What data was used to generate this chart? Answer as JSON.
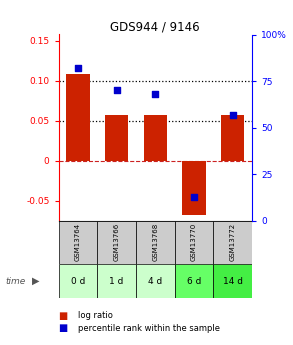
{
  "title": "GDS944 / 9146",
  "samples": [
    "GSM13764",
    "GSM13766",
    "GSM13768",
    "GSM13770",
    "GSM13772"
  ],
  "time_labels": [
    "0 d",
    "1 d",
    "4 d",
    "6 d",
    "14 d"
  ],
  "log_ratios": [
    0.108,
    0.057,
    0.057,
    -0.068,
    0.057
  ],
  "percentile_ranks": [
    0.82,
    0.7,
    0.68,
    0.13,
    0.57
  ],
  "bar_color": "#cc2200",
  "dot_color": "#0000cc",
  "ylim_left": [
    -0.075,
    0.158
  ],
  "ylim_right": [
    0,
    1.0
  ],
  "yticks_left": [
    -0.05,
    0.0,
    0.05,
    0.1,
    0.15
  ],
  "yticks_right": [
    0,
    0.25,
    0.5,
    0.75,
    1.0
  ],
  "ytick_labels_left": [
    "-0.05",
    "0",
    "0.05",
    "0.10",
    "0.15"
  ],
  "ytick_labels_right": [
    "0",
    "25",
    "50",
    "75",
    "100%"
  ],
  "hline_y": [
    0.05,
    0.1
  ],
  "zero_line_y": 0.0,
  "sample_bg_color": "#cccccc",
  "time_bg_colors": [
    "#ccffcc",
    "#ccffcc",
    "#ccffcc",
    "#66ff66",
    "#44ee44"
  ],
  "bar_width": 0.6,
  "dot_size": 25,
  "legend_log_ratio": "log ratio",
  "legend_percentile": "percentile rank within the sample"
}
